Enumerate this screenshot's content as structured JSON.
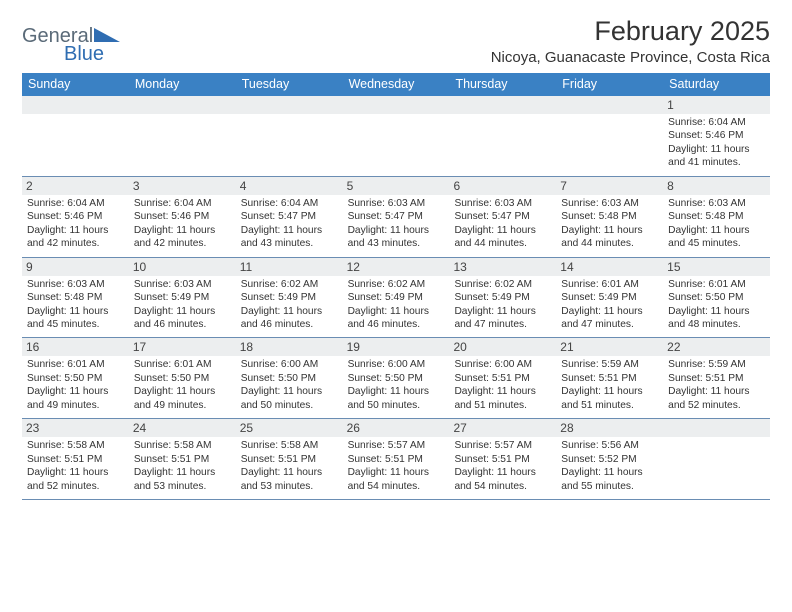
{
  "logo": {
    "word1": "General",
    "word2": "Blue",
    "color_gray": "#5a6a78",
    "color_blue": "#2f6db2"
  },
  "header": {
    "month_year": "February 2025",
    "location": "Nicoya, Guanacaste Province, Costa Rica"
  },
  "styles": {
    "header_bg": "#3a81c4",
    "header_fg": "#ffffff",
    "daynum_bg": "#eceeef",
    "border_color": "#6a8db3"
  },
  "day_names": [
    "Sunday",
    "Monday",
    "Tuesday",
    "Wednesday",
    "Thursday",
    "Friday",
    "Saturday"
  ],
  "weeks": [
    [
      {
        "day": "",
        "sunrise": "",
        "sunset": "",
        "daylight": ""
      },
      {
        "day": "",
        "sunrise": "",
        "sunset": "",
        "daylight": ""
      },
      {
        "day": "",
        "sunrise": "",
        "sunset": "",
        "daylight": ""
      },
      {
        "day": "",
        "sunrise": "",
        "sunset": "",
        "daylight": ""
      },
      {
        "day": "",
        "sunrise": "",
        "sunset": "",
        "daylight": ""
      },
      {
        "day": "",
        "sunrise": "",
        "sunset": "",
        "daylight": ""
      },
      {
        "day": "1",
        "sunrise": "Sunrise: 6:04 AM",
        "sunset": "Sunset: 5:46 PM",
        "daylight": "Daylight: 11 hours and 41 minutes."
      }
    ],
    [
      {
        "day": "2",
        "sunrise": "Sunrise: 6:04 AM",
        "sunset": "Sunset: 5:46 PM",
        "daylight": "Daylight: 11 hours and 42 minutes."
      },
      {
        "day": "3",
        "sunrise": "Sunrise: 6:04 AM",
        "sunset": "Sunset: 5:46 PM",
        "daylight": "Daylight: 11 hours and 42 minutes."
      },
      {
        "day": "4",
        "sunrise": "Sunrise: 6:04 AM",
        "sunset": "Sunset: 5:47 PM",
        "daylight": "Daylight: 11 hours and 43 minutes."
      },
      {
        "day": "5",
        "sunrise": "Sunrise: 6:03 AM",
        "sunset": "Sunset: 5:47 PM",
        "daylight": "Daylight: 11 hours and 43 minutes."
      },
      {
        "day": "6",
        "sunrise": "Sunrise: 6:03 AM",
        "sunset": "Sunset: 5:47 PM",
        "daylight": "Daylight: 11 hours and 44 minutes."
      },
      {
        "day": "7",
        "sunrise": "Sunrise: 6:03 AM",
        "sunset": "Sunset: 5:48 PM",
        "daylight": "Daylight: 11 hours and 44 minutes."
      },
      {
        "day": "8",
        "sunrise": "Sunrise: 6:03 AM",
        "sunset": "Sunset: 5:48 PM",
        "daylight": "Daylight: 11 hours and 45 minutes."
      }
    ],
    [
      {
        "day": "9",
        "sunrise": "Sunrise: 6:03 AM",
        "sunset": "Sunset: 5:48 PM",
        "daylight": "Daylight: 11 hours and 45 minutes."
      },
      {
        "day": "10",
        "sunrise": "Sunrise: 6:03 AM",
        "sunset": "Sunset: 5:49 PM",
        "daylight": "Daylight: 11 hours and 46 minutes."
      },
      {
        "day": "11",
        "sunrise": "Sunrise: 6:02 AM",
        "sunset": "Sunset: 5:49 PM",
        "daylight": "Daylight: 11 hours and 46 minutes."
      },
      {
        "day": "12",
        "sunrise": "Sunrise: 6:02 AM",
        "sunset": "Sunset: 5:49 PM",
        "daylight": "Daylight: 11 hours and 46 minutes."
      },
      {
        "day": "13",
        "sunrise": "Sunrise: 6:02 AM",
        "sunset": "Sunset: 5:49 PM",
        "daylight": "Daylight: 11 hours and 47 minutes."
      },
      {
        "day": "14",
        "sunrise": "Sunrise: 6:01 AM",
        "sunset": "Sunset: 5:49 PM",
        "daylight": "Daylight: 11 hours and 47 minutes."
      },
      {
        "day": "15",
        "sunrise": "Sunrise: 6:01 AM",
        "sunset": "Sunset: 5:50 PM",
        "daylight": "Daylight: 11 hours and 48 minutes."
      }
    ],
    [
      {
        "day": "16",
        "sunrise": "Sunrise: 6:01 AM",
        "sunset": "Sunset: 5:50 PM",
        "daylight": "Daylight: 11 hours and 49 minutes."
      },
      {
        "day": "17",
        "sunrise": "Sunrise: 6:01 AM",
        "sunset": "Sunset: 5:50 PM",
        "daylight": "Daylight: 11 hours and 49 minutes."
      },
      {
        "day": "18",
        "sunrise": "Sunrise: 6:00 AM",
        "sunset": "Sunset: 5:50 PM",
        "daylight": "Daylight: 11 hours and 50 minutes."
      },
      {
        "day": "19",
        "sunrise": "Sunrise: 6:00 AM",
        "sunset": "Sunset: 5:50 PM",
        "daylight": "Daylight: 11 hours and 50 minutes."
      },
      {
        "day": "20",
        "sunrise": "Sunrise: 6:00 AM",
        "sunset": "Sunset: 5:51 PM",
        "daylight": "Daylight: 11 hours and 51 minutes."
      },
      {
        "day": "21",
        "sunrise": "Sunrise: 5:59 AM",
        "sunset": "Sunset: 5:51 PM",
        "daylight": "Daylight: 11 hours and 51 minutes."
      },
      {
        "day": "22",
        "sunrise": "Sunrise: 5:59 AM",
        "sunset": "Sunset: 5:51 PM",
        "daylight": "Daylight: 11 hours and 52 minutes."
      }
    ],
    [
      {
        "day": "23",
        "sunrise": "Sunrise: 5:58 AM",
        "sunset": "Sunset: 5:51 PM",
        "daylight": "Daylight: 11 hours and 52 minutes."
      },
      {
        "day": "24",
        "sunrise": "Sunrise: 5:58 AM",
        "sunset": "Sunset: 5:51 PM",
        "daylight": "Daylight: 11 hours and 53 minutes."
      },
      {
        "day": "25",
        "sunrise": "Sunrise: 5:58 AM",
        "sunset": "Sunset: 5:51 PM",
        "daylight": "Daylight: 11 hours and 53 minutes."
      },
      {
        "day": "26",
        "sunrise": "Sunrise: 5:57 AM",
        "sunset": "Sunset: 5:51 PM",
        "daylight": "Daylight: 11 hours and 54 minutes."
      },
      {
        "day": "27",
        "sunrise": "Sunrise: 5:57 AM",
        "sunset": "Sunset: 5:51 PM",
        "daylight": "Daylight: 11 hours and 54 minutes."
      },
      {
        "day": "28",
        "sunrise": "Sunrise: 5:56 AM",
        "sunset": "Sunset: 5:52 PM",
        "daylight": "Daylight: 11 hours and 55 minutes."
      },
      {
        "day": "",
        "sunrise": "",
        "sunset": "",
        "daylight": ""
      }
    ]
  ]
}
